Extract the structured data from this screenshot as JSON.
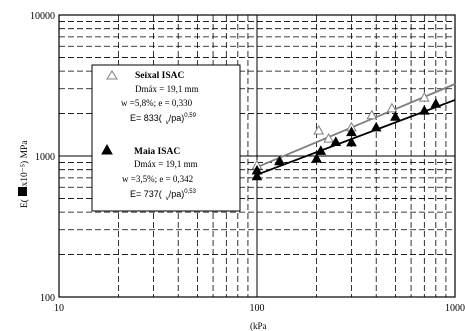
{
  "chart_data": {
    "type": "scatter",
    "x_scale": "log",
    "y_scale": "log",
    "xlim": [
      10,
      1000
    ],
    "ylim": [
      100,
      10000
    ],
    "x_ticks": [
      "10",
      "100",
      "1000"
    ],
    "y_ticks": [
      "100",
      "1000",
      "10000"
    ],
    "xlabel": "(kPa",
    "ylabel": "E(    =4x10⁻⁵) MPa",
    "grid": true,
    "legend_position": "top-left",
    "series": [
      {
        "name": "Seixal ISAC",
        "marker": "hollow-triangle",
        "color": "#808080",
        "legend_lines": [
          "Dmáx = 19,1 mm",
          "w =5,8%; e = 0,330"
        ],
        "equation": "E= 833(",
        "equation_tail": "/pa)",
        "equation_exp": "0,59",
        "fit": {
          "coef": 833,
          "exp": 0.59,
          "x_range": [
            100,
            1000
          ]
        },
        "points": [
          {
            "x": 100,
            "y": 860
          },
          {
            "x": 130,
            "y": 930
          },
          {
            "x": 205,
            "y": 1520
          },
          {
            "x": 230,
            "y": 1330
          },
          {
            "x": 300,
            "y": 1600
          },
          {
            "x": 380,
            "y": 1950
          },
          {
            "x": 480,
            "y": 2180
          },
          {
            "x": 700,
            "y": 2600
          }
        ]
      },
      {
        "name": "Maia ISAC",
        "marker": "filled-triangle",
        "color": "#000000",
        "legend_lines": [
          "Dmáx = 19,1 mm",
          "w =3,5%; e = 0,342"
        ],
        "equation": "E= 737(",
        "equation_tail": "/pa)",
        "equation_exp": "0,53",
        "fit": {
          "coef": 737,
          "exp": 0.53,
          "x_range": [
            100,
            1000
          ]
        },
        "points": [
          {
            "x": 100,
            "y": 720
          },
          {
            "x": 100,
            "y": 790
          },
          {
            "x": 130,
            "y": 920
          },
          {
            "x": 200,
            "y": 960
          },
          {
            "x": 210,
            "y": 1090
          },
          {
            "x": 250,
            "y": 1260
          },
          {
            "x": 300,
            "y": 1250
          },
          {
            "x": 300,
            "y": 1480
          },
          {
            "x": 400,
            "y": 1600
          },
          {
            "x": 500,
            "y": 1900
          },
          {
            "x": 700,
            "y": 2100
          },
          {
            "x": 800,
            "y": 2350
          }
        ]
      }
    ]
  }
}
